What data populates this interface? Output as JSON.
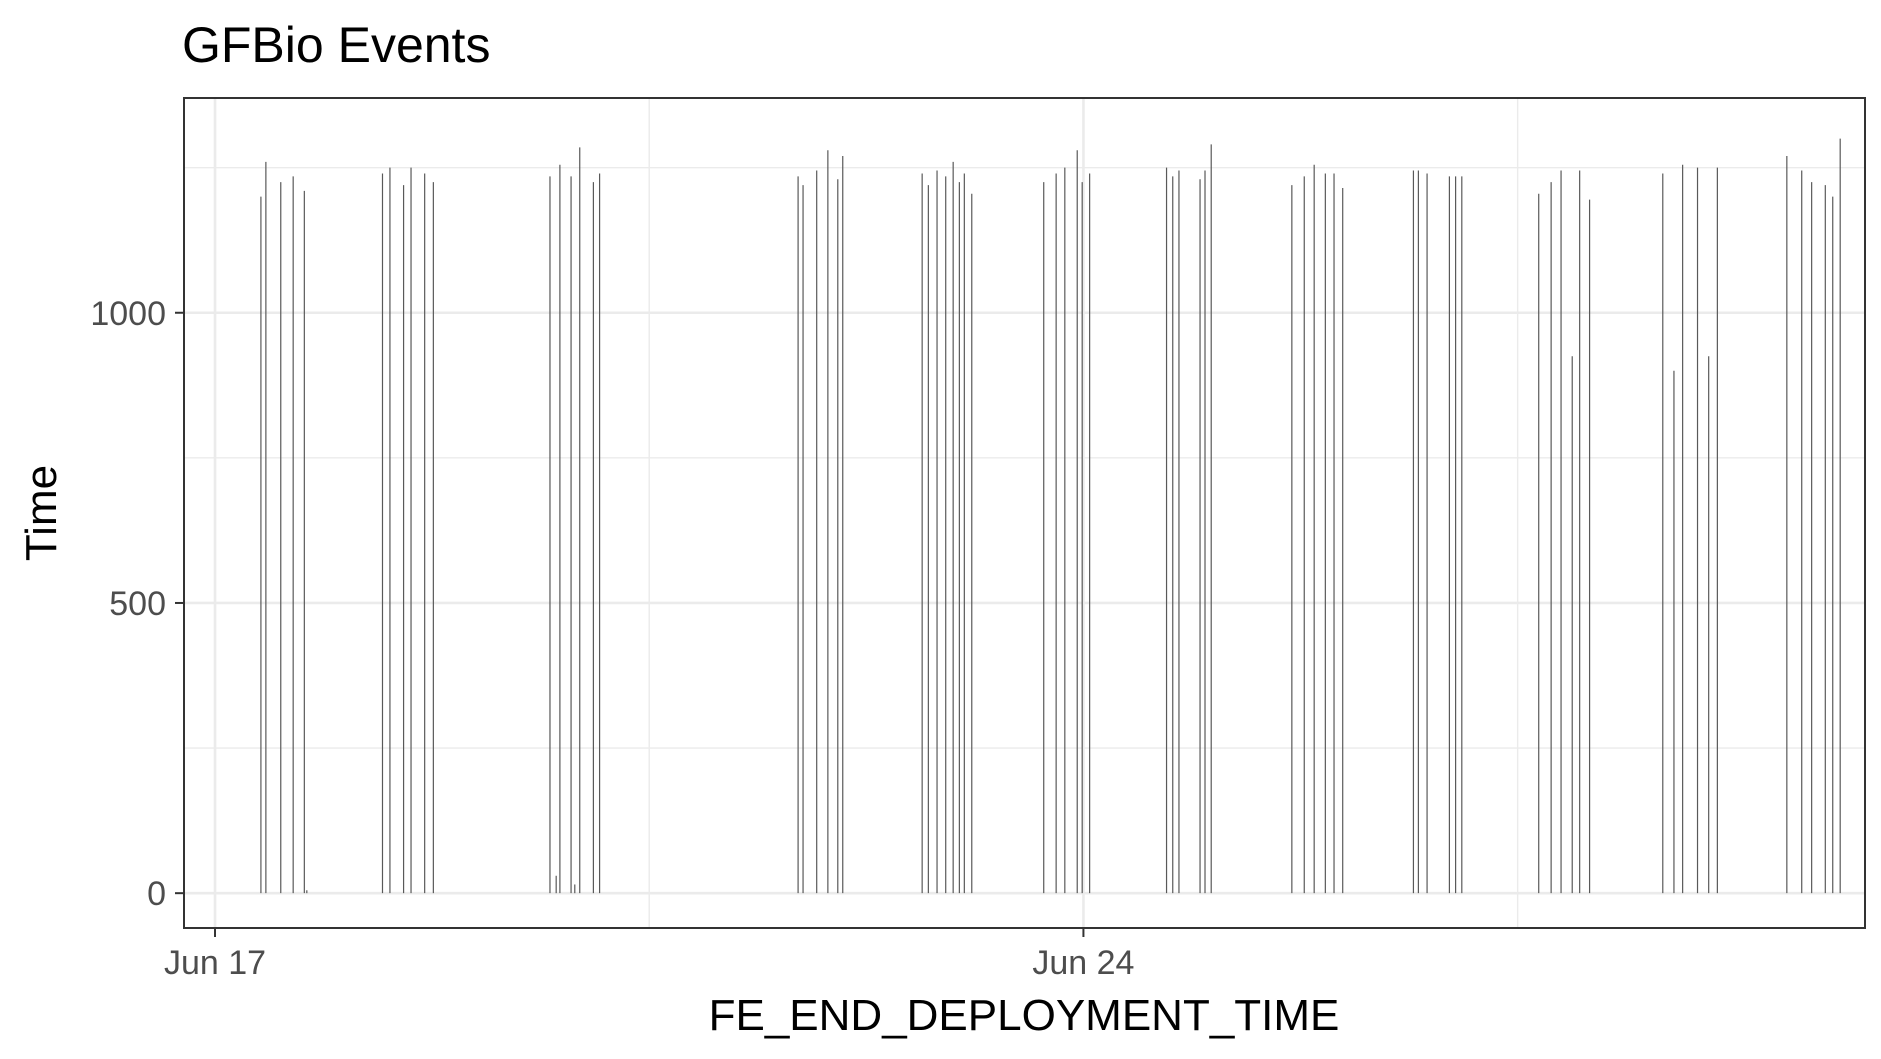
{
  "chart_data": {
    "type": "bar",
    "title": "GFBio Events",
    "xlabel": "FE_END_DEPLOYMENT_TIME",
    "ylabel": "Time",
    "x_axis_kind": "date",
    "x_ticks": [
      {
        "label": "Jun 17",
        "value": "Jun 17"
      },
      {
        "label": "Jun 24",
        "value": "Jun 24"
      }
    ],
    "y_ticks": [
      0,
      500,
      1000
    ],
    "xlim": [
      "Jun 16.75",
      "Jun 30.3"
    ],
    "ylim": [
      -60,
      1370
    ],
    "grid": true,
    "legend": "none",
    "bar_color": "#595959",
    "series": [
      {
        "values": [
          {
            "x": "Jun 17.37",
            "y": 1200
          },
          {
            "x": "Jun 17.41",
            "y": 1260
          },
          {
            "x": "Jun 17.53",
            "y": 1225
          },
          {
            "x": "Jun 17.63",
            "y": 1235
          },
          {
            "x": "Jun 17.72",
            "y": 1210
          },
          {
            "x": "Jun 17.74",
            "y": 5
          },
          {
            "x": "Jun 18.35",
            "y": 1240
          },
          {
            "x": "Jun 18.41",
            "y": 1250
          },
          {
            "x": "Jun 18.52",
            "y": 1220
          },
          {
            "x": "Jun 18.58",
            "y": 1250
          },
          {
            "x": "Jun 18.69",
            "y": 1240
          },
          {
            "x": "Jun 18.76",
            "y": 1225
          },
          {
            "x": "Jun 19.70",
            "y": 1235
          },
          {
            "x": "Jun 19.75",
            "y": 30
          },
          {
            "x": "Jun 19.78",
            "y": 1255
          },
          {
            "x": "Jun 19.87",
            "y": 1235
          },
          {
            "x": "Jun 19.90",
            "y": 15
          },
          {
            "x": "Jun 19.94",
            "y": 1285
          },
          {
            "x": "Jun 20.05",
            "y": 1225
          },
          {
            "x": "Jun 20.10",
            "y": 1240
          },
          {
            "x": "Jun 21.70",
            "y": 1235
          },
          {
            "x": "Jun 21.74",
            "y": 1220
          },
          {
            "x": "Jun 21.85",
            "y": 1245
          },
          {
            "x": "Jun 21.94",
            "y": 1280
          },
          {
            "x": "Jun 22.02",
            "y": 1230
          },
          {
            "x": "Jun 22.06",
            "y": 1270
          },
          {
            "x": "Jun 22.70",
            "y": 1240
          },
          {
            "x": "Jun 22.75",
            "y": 1220
          },
          {
            "x": "Jun 22.82",
            "y": 1245
          },
          {
            "x": "Jun 22.89",
            "y": 1235
          },
          {
            "x": "Jun 22.95",
            "y": 1260
          },
          {
            "x": "Jun 23.00",
            "y": 1225
          },
          {
            "x": "Jun 23.04",
            "y": 1240
          },
          {
            "x": "Jun 23.10",
            "y": 1205
          },
          {
            "x": "Jun 23.68",
            "y": 1225
          },
          {
            "x": "Jun 23.78",
            "y": 1240
          },
          {
            "x": "Jun 23.85",
            "y": 1250
          },
          {
            "x": "Jun 23.95",
            "y": 1280
          },
          {
            "x": "Jun 23.99",
            "y": 1225
          },
          {
            "x": "Jun 24.05",
            "y": 1240
          },
          {
            "x": "Jun 24.67",
            "y": 1250
          },
          {
            "x": "Jun 24.72",
            "y": 1235
          },
          {
            "x": "Jun 24.77",
            "y": 1245
          },
          {
            "x": "Jun 24.94",
            "y": 1230
          },
          {
            "x": "Jun 24.98",
            "y": 1245
          },
          {
            "x": "Jun 25.03",
            "y": 1290
          },
          {
            "x": "Jun 25.68",
            "y": 1220
          },
          {
            "x": "Jun 25.78",
            "y": 1235
          },
          {
            "x": "Jun 25.86",
            "y": 1255
          },
          {
            "x": "Jun 25.95",
            "y": 1240
          },
          {
            "x": "Jun 26.02",
            "y": 1240
          },
          {
            "x": "Jun 26.09",
            "y": 1215
          },
          {
            "x": "Jun 26.66",
            "y": 1245
          },
          {
            "x": "Jun 26.70",
            "y": 1245
          },
          {
            "x": "Jun 26.77",
            "y": 1240
          },
          {
            "x": "Jun 26.95",
            "y": 1235
          },
          {
            "x": "Jun 27.00",
            "y": 1235
          },
          {
            "x": "Jun 27.05",
            "y": 1235
          },
          {
            "x": "Jun 27.67",
            "y": 1205
          },
          {
            "x": "Jun 27.77",
            "y": 1225
          },
          {
            "x": "Jun 27.85",
            "y": 1245
          },
          {
            "x": "Jun 27.94",
            "y": 925
          },
          {
            "x": "Jun 28.00",
            "y": 1245
          },
          {
            "x": "Jun 28.08",
            "y": 1195
          },
          {
            "x": "Jun 28.67",
            "y": 1240
          },
          {
            "x": "Jun 28.76",
            "y": 900
          },
          {
            "x": "Jun 28.83",
            "y": 1255
          },
          {
            "x": "Jun 28.95",
            "y": 1250
          },
          {
            "x": "Jun 29.04",
            "y": 925
          },
          {
            "x": "Jun 29.11",
            "y": 1250
          },
          {
            "x": "Jun 29.67",
            "y": 1270
          },
          {
            "x": "Jun 29.79",
            "y": 1245
          },
          {
            "x": "Jun 29.87",
            "y": 1225
          },
          {
            "x": "Jun 29.98",
            "y": 1220
          },
          {
            "x": "Jun 30.04",
            "y": 1200
          },
          {
            "x": "Jun 30.10",
            "y": 1300
          }
        ]
      }
    ]
  }
}
